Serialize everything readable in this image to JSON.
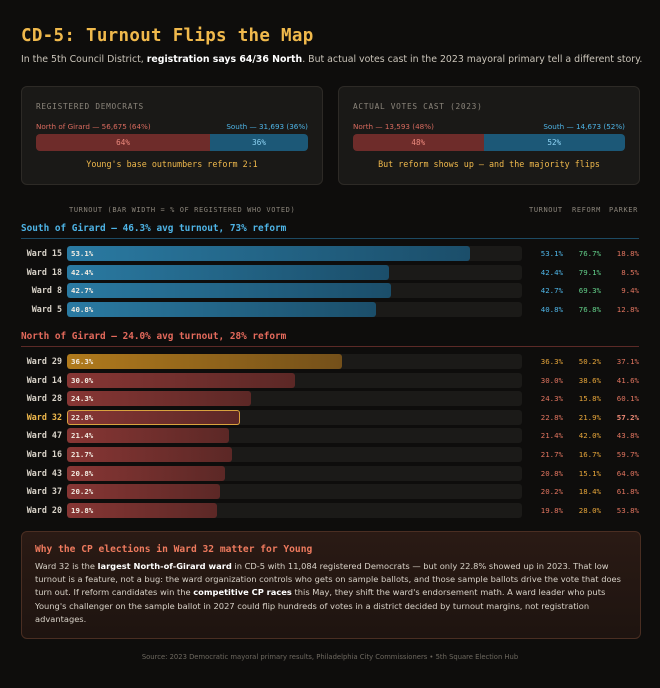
{
  "title": "CD-5: Turnout Flips the Map",
  "subtitle": {
    "pre": "In the 5th Council District, ",
    "bold": "registration says 64/36 North",
    "post": ". But actual votes cast in the 2023 mayoral primary tell a different story."
  },
  "panels": {
    "registered": {
      "title": "REGISTERED DEMOCRATS",
      "north_label": "North of Girard — 56,675 (64%)",
      "south_label": "South — 31,693 (36%)",
      "north_pct": "64%",
      "south_pct": "36%",
      "north_share": 64,
      "caption": "Young's base outnumbers reform 2:1"
    },
    "votes": {
      "title": "ACTUAL VOTES CAST (2023)",
      "north_label": "North — 13,593 (48%)",
      "south_label": "South — 14,673 (52%)",
      "north_pct": "48%",
      "south_pct": "52%",
      "north_share": 48,
      "caption": "But reform shows up — and the majority flips"
    }
  },
  "columns": {
    "bar_header": "TURNOUT (BAR WIDTH = % OF REGISTERED WHO VOTED)",
    "turnout": "TURNOUT",
    "reform": "REFORM",
    "parker": "PARKER"
  },
  "sections": {
    "south": {
      "title": "South of Girard — 46.3% avg turnout, 73% reform"
    },
    "north": {
      "title": "North of Girard — 24.0% avg turnout, 28% reform"
    }
  },
  "chart_data": {
    "type": "bar",
    "orientation": "horizontal",
    "title": "Turnout (bar width = % of registered who voted)",
    "xlim": [
      0,
      60
    ],
    "x_unit": "%",
    "groups": [
      {
        "name": "South of Girard",
        "rows": [
          {
            "ward": "Ward 15",
            "turnout": 53.1,
            "turnout_label": "53.1%",
            "reform": "76.7%",
            "parker": "18.8%"
          },
          {
            "ward": "Ward 18",
            "turnout": 42.4,
            "turnout_label": "42.4%",
            "reform": "79.1%",
            "parker": "8.5%"
          },
          {
            "ward": "Ward 8",
            "turnout": 42.7,
            "turnout_label": "42.7%",
            "reform": "69.3%",
            "parker": "9.4%"
          },
          {
            "ward": "Ward 5",
            "turnout": 40.8,
            "turnout_label": "40.8%",
            "reform": "76.8%",
            "parker": "12.8%"
          }
        ]
      },
      {
        "name": "North of Girard",
        "rows": [
          {
            "ward": "Ward 29",
            "turnout": 36.3,
            "turnout_label": "36.3%",
            "reform": "50.2%",
            "parker": "37.1%"
          },
          {
            "ward": "Ward 14",
            "turnout": 30.0,
            "turnout_label": "30.0%",
            "reform": "38.6%",
            "parker": "41.6%"
          },
          {
            "ward": "Ward 28",
            "turnout": 24.3,
            "turnout_label": "24.3%",
            "reform": "15.8%",
            "parker": "60.1%"
          },
          {
            "ward": "Ward 32",
            "turnout": 22.8,
            "turnout_label": "22.8%",
            "reform": "21.9%",
            "parker": "57.2%",
            "highlight": true
          },
          {
            "ward": "Ward 47",
            "turnout": 21.4,
            "turnout_label": "21.4%",
            "reform": "42.0%",
            "parker": "43.8%"
          },
          {
            "ward": "Ward 16",
            "turnout": 21.7,
            "turnout_label": "21.7%",
            "reform": "16.7%",
            "parker": "59.7%"
          },
          {
            "ward": "Ward 43",
            "turnout": 20.8,
            "turnout_label": "20.8%",
            "reform": "15.1%",
            "parker": "64.0%"
          },
          {
            "ward": "Ward 37",
            "turnout": 20.2,
            "turnout_label": "20.2%",
            "reform": "18.4%",
            "parker": "61.8%"
          },
          {
            "ward": "Ward 20",
            "turnout": 19.8,
            "turnout_label": "19.8%",
            "reform": "28.0%",
            "parker": "53.8%"
          }
        ]
      }
    ]
  },
  "note": {
    "title": "Why the CP elections in Ward 32 matter for Young",
    "p1": "Ward 32 is the ",
    "b1": "largest North-of-Girard ward",
    "p2": " in CD-5 with 11,084 registered Democrats — but only 22.8% showed up in 2023. That low turnout is a feature, not a bug: the ward organization controls who gets on sample ballots, and those sample ballots drive the vote that does turn out. If reform candidates win the ",
    "b2": "competitive CP races",
    "p3": " this May, they shift the ward's endorsement math. A ward leader who puts Young's challenger on the sample ballot in 2027 could flip hundreds of votes in a district decided by turnout margins, not registration advantages."
  },
  "source": "Source: 2023 Democratic mayoral primary results, Philadelphia City Commissioners • 5th Square Election Hub",
  "colors": {
    "accent": "#f0b94c",
    "south": "#4eb4e6",
    "north": "#e46a5c",
    "reform": "#63d08a"
  }
}
